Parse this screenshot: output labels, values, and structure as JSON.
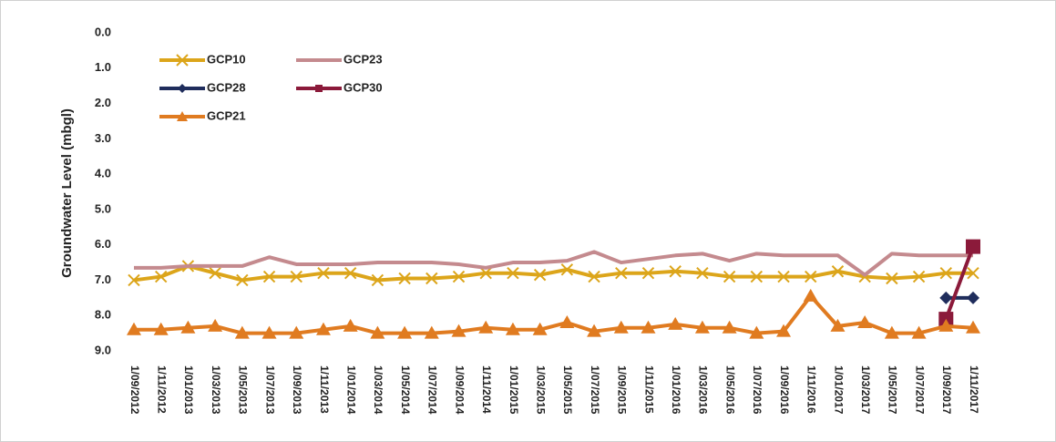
{
  "chart_data": {
    "type": "line",
    "y_label": "Groundwater Level (mbgl)",
    "categories": [
      "1/09/2012",
      "1/11/2012",
      "1/01/2013",
      "1/03/2013",
      "1/05/2013",
      "1/07/2013",
      "1/09/2013",
      "1/11/2013",
      "1/01/2014",
      "1/03/2014",
      "1/05/2014",
      "1/07/2014",
      "1/09/2014",
      "1/11/2014",
      "1/01/2015",
      "1/03/2015",
      "1/05/2015",
      "1/07/2015",
      "1/09/2015",
      "1/11/2015",
      "1/01/2016",
      "1/03/2016",
      "1/05/2016",
      "1/07/2016",
      "1/09/2016",
      "1/11/2016",
      "1/01/2017",
      "1/03/2017",
      "1/05/2017",
      "1/07/2017",
      "1/09/2017",
      "1/11/2017"
    ],
    "ylim": [
      9,
      0
    ],
    "yticks": [
      {
        "value": 0,
        "label": "0.0"
      },
      {
        "value": 1,
        "label": "1.0"
      },
      {
        "value": 2,
        "label": "2.0"
      },
      {
        "value": 3,
        "label": "3.0"
      },
      {
        "value": 4,
        "label": "4.0"
      },
      {
        "value": 5,
        "label": "5.0"
      },
      {
        "value": 6,
        "label": "6.0"
      },
      {
        "value": 7,
        "label": "7.0"
      },
      {
        "value": 8,
        "label": "8.0"
      },
      {
        "value": 9,
        "label": "9.0"
      }
    ],
    "grid": false,
    "legend": "top-left",
    "series": [
      {
        "name": "GCP10",
        "color": "#dca51a",
        "marker": "x",
        "values": [
          7.0,
          6.9,
          6.6,
          6.8,
          7.0,
          6.9,
          6.9,
          6.8,
          6.8,
          7.0,
          6.95,
          6.95,
          6.9,
          6.8,
          6.8,
          6.85,
          6.7,
          6.9,
          6.8,
          6.8,
          6.75,
          6.8,
          6.9,
          6.9,
          6.9,
          6.9,
          6.75,
          6.9,
          6.95,
          6.9,
          6.8,
          6.8
        ]
      },
      {
        "name": "GCP23",
        "color": "#c48a8e",
        "marker": "none",
        "values": [
          6.65,
          6.65,
          6.6,
          6.6,
          6.6,
          6.35,
          6.55,
          6.55,
          6.55,
          6.5,
          6.5,
          6.5,
          6.55,
          6.65,
          6.5,
          6.5,
          6.45,
          6.2,
          6.5,
          6.4,
          6.3,
          6.25,
          6.45,
          6.25,
          6.3,
          6.3,
          6.3,
          6.85,
          6.25,
          6.3,
          6.3,
          6.3
        ]
      },
      {
        "name": "GCP28",
        "color": "#1f2d5c",
        "marker": "diamond",
        "values": [
          null,
          null,
          null,
          null,
          null,
          null,
          null,
          null,
          null,
          null,
          null,
          null,
          null,
          null,
          null,
          null,
          null,
          null,
          null,
          null,
          null,
          null,
          null,
          null,
          null,
          null,
          null,
          null,
          null,
          null,
          7.5,
          7.5
        ]
      },
      {
        "name": "GCP30",
        "color": "#8b1a3a",
        "marker": "square",
        "values": [
          null,
          null,
          null,
          null,
          null,
          null,
          null,
          null,
          null,
          null,
          null,
          null,
          null,
          null,
          null,
          null,
          null,
          null,
          null,
          null,
          null,
          null,
          null,
          null,
          null,
          null,
          null,
          null,
          null,
          null,
          8.1,
          6.05
        ]
      },
      {
        "name": "GCP21",
        "color": "#e07b20",
        "marker": "triangle",
        "values": [
          8.4,
          8.4,
          8.35,
          8.3,
          8.5,
          8.5,
          8.5,
          8.4,
          8.3,
          8.5,
          8.5,
          8.5,
          8.45,
          8.35,
          8.4,
          8.4,
          8.2,
          8.45,
          8.35,
          8.35,
          8.25,
          8.35,
          8.35,
          8.5,
          8.45,
          7.45,
          8.3,
          8.2,
          8.5,
          8.5,
          8.3,
          8.35
        ]
      }
    ]
  }
}
